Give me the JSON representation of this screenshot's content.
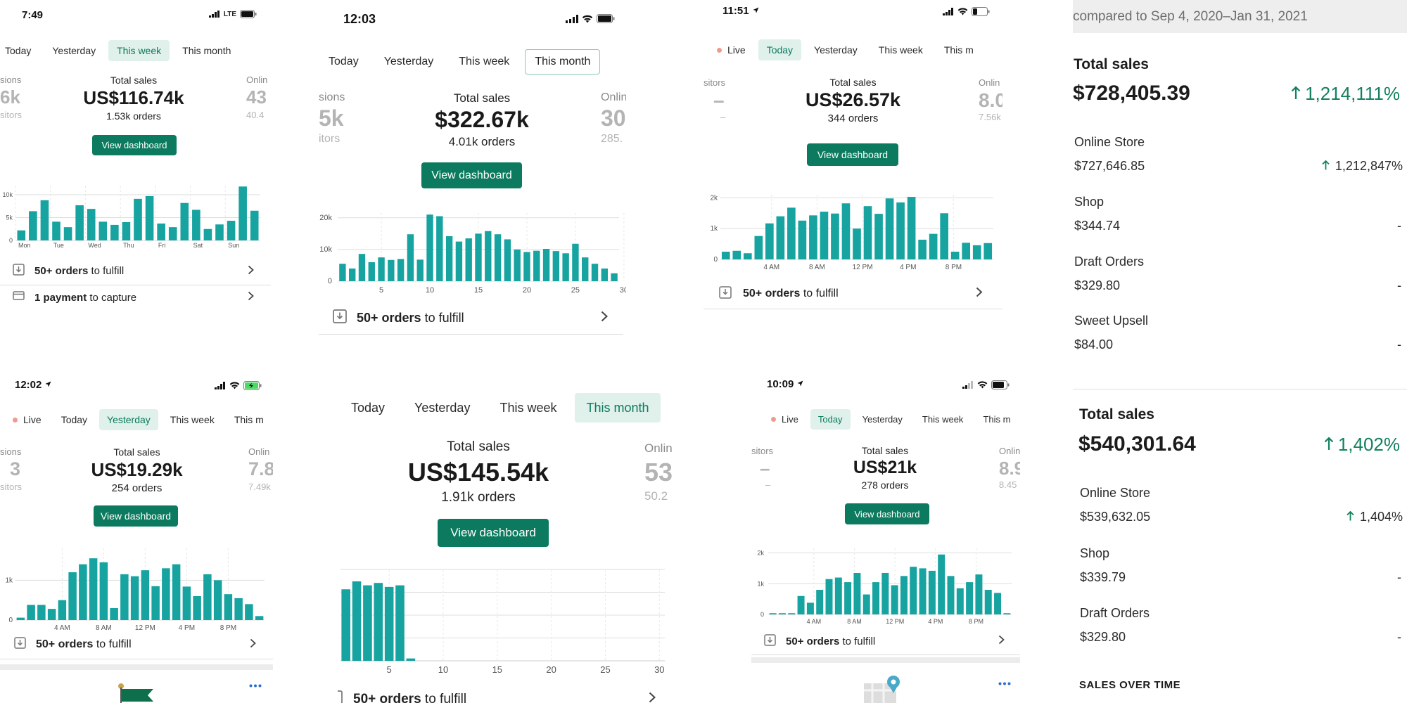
{
  "accent_color": "#0b7a5e",
  "bar_color": "#17a3a0",
  "panels": {
    "p1": {
      "time": "7:49",
      "network": "LTE",
      "tabs": [
        "Today",
        "Yesterday",
        "This week",
        "This month"
      ],
      "active_tab": "This week",
      "left": {
        "t": "sions",
        "v": "6k",
        "s": "sitors"
      },
      "center": {
        "t": "Total sales",
        "v": "US$116.74k",
        "s": "1.53k orders"
      },
      "right": {
        "t": "Onlin",
        "v": "43",
        "s": "40.4"
      },
      "button": "View dashboard",
      "rows": [
        {
          "bold": "50+ orders",
          "rest": " to fulfill"
        },
        {
          "bold": "1 payment",
          "rest": " to capture"
        }
      ],
      "chart_data": {
        "type": "bar",
        "ylabels": [
          "10k",
          "5k",
          "0"
        ],
        "ylim": [
          0,
          12000
        ],
        "xlabels": [
          "Mon",
          "Tue",
          "Wed",
          "Thu",
          "Fri",
          "Sat",
          "Sun"
        ],
        "values": [
          2200,
          6400,
          8800,
          4100,
          2900,
          7700,
          6900,
          4100,
          3400,
          4000,
          9100,
          9700,
          3700,
          2900,
          8200,
          6700,
          2500,
          3500,
          4300,
          11800,
          6500
        ]
      }
    },
    "p2": {
      "time": "12:03",
      "tabs": [
        "Today",
        "Yesterday",
        "This week",
        "This month"
      ],
      "active_tab": "This month",
      "left": {
        "t": "sions",
        "v": "5k",
        "s": "itors"
      },
      "center": {
        "t": "Total sales",
        "v": "$322.67k",
        "s": "4.01k orders"
      },
      "right": {
        "t": "Onlin",
        "v": "30",
        "s": "285."
      },
      "button": "View dashboard",
      "rows": [
        {
          "bold": "50+ orders",
          "rest": " to fulfill"
        }
      ],
      "chart_data": {
        "type": "bar",
        "ylabels": [
          "20k",
          "10k",
          "0"
        ],
        "ylim": [
          0,
          21500
        ],
        "xlabels": [
          "5",
          "10",
          "15",
          "20",
          "25",
          "30"
        ],
        "values": [
          5500,
          4000,
          8600,
          6000,
          7500,
          6700,
          7000,
          14800,
          6800,
          21000,
          20500,
          14200,
          12500,
          13500,
          15000,
          15800,
          14800,
          13200,
          10000,
          9200,
          9600,
          10200,
          9500,
          8800,
          11800,
          7500,
          5500,
          4000,
          2500
        ]
      }
    },
    "p3": {
      "time": "11:51",
      "tabs": [
        "Live",
        "Today",
        "Yesterday",
        "This week",
        "This m"
      ],
      "active_tab": "Today",
      "left": {
        "t": "sitors",
        "v": "–",
        "s": "–"
      },
      "center": {
        "t": "Total sales",
        "v": "US$26.57k",
        "s": "344 orders"
      },
      "right": {
        "t": "Onlin",
        "v": "8.0",
        "s": "7.56k"
      },
      "button": "View dashboard",
      "rows": [
        {
          "bold": "50+ orders",
          "rest": " to fulfill"
        }
      ],
      "chart_data": {
        "type": "bar",
        "ylabels": [
          "2k",
          "1k",
          "0"
        ],
        "ylim": [
          0,
          2100
        ],
        "xlabels": [
          "4 AM",
          "8 AM",
          "12 PM",
          "4 PM",
          "8 PM"
        ],
        "values": [
          250,
          280,
          200,
          760,
          1170,
          1400,
          1680,
          1260,
          1430,
          1550,
          1490,
          1820,
          1000,
          1730,
          1480,
          1980,
          1850,
          2030,
          640,
          830,
          1500,
          250,
          540,
          460,
          530
        ]
      }
    },
    "p4": {
      "time": "12:02",
      "tabs": [
        "Live",
        "Today",
        "Yesterday",
        "This week",
        "This m"
      ],
      "active_tab": "Yesterday",
      "left": {
        "t": "sions",
        "v": "3",
        "s": "sitors"
      },
      "center": {
        "t": "Total sales",
        "v": "US$19.29k",
        "s": "254 orders"
      },
      "right": {
        "t": "Onlin",
        "v": "7.8",
        "s": "7.49k"
      },
      "button": "View dashboard",
      "rows": [
        {
          "bold": "50+ orders",
          "rest": " to fulfill"
        }
      ],
      "chart_data": {
        "type": "bar",
        "ylabels": [
          "1k",
          "0"
        ],
        "ylim": [
          0,
          1800
        ],
        "xlabels": [
          "4 AM",
          "8 AM",
          "12 PM",
          "4 PM",
          "8 PM"
        ],
        "values": [
          60,
          380,
          380,
          280,
          500,
          1200,
          1400,
          1550,
          1450,
          300,
          1150,
          1100,
          1250,
          850,
          1300,
          1400,
          840,
          600,
          1150,
          1000,
          650,
          550,
          400,
          100
        ]
      }
    },
    "p5": {
      "tabs": [
        "Today",
        "Yesterday",
        "This week",
        "This month"
      ],
      "active_tab": "This month",
      "left": {
        "t": "",
        "v": "",
        "s": ""
      },
      "center": {
        "t": "Total sales",
        "v": "US$145.54k",
        "s": "1.91k orders"
      },
      "right": {
        "t": "Onlin",
        "v": "53",
        "s": "50.2"
      },
      "button": "View dashboard",
      "rows": [
        {
          "bold": "50+ orders",
          "rest": " to fulfill"
        }
      ],
      "chart_data": {
        "type": "bar",
        "ylabels": [],
        "ylim": [
          0,
          1.15
        ],
        "xlabels": [
          "5",
          "10",
          "15",
          "20",
          "25",
          "30"
        ],
        "values": [
          0.9,
          1.0,
          0.95,
          0.98,
          0.93,
          0.95,
          0.03,
          0,
          0,
          0,
          0,
          0,
          0,
          0,
          0,
          0,
          0,
          0,
          0,
          0,
          0,
          0,
          0,
          0,
          0,
          0,
          0,
          0,
          0,
          0
        ]
      }
    },
    "p6": {
      "time": "10:09",
      "tabs": [
        "Live",
        "Today",
        "Yesterday",
        "This week",
        "This m"
      ],
      "active_tab": "Today",
      "left": {
        "t": "sitors",
        "v": "–",
        "s": "–"
      },
      "center": {
        "t": "Total sales",
        "v": "US$21k",
        "s": "278 orders"
      },
      "right": {
        "t": "Onlin",
        "v": "8.9",
        "s": "8.45"
      },
      "button": "View dashboard",
      "rows": [
        {
          "bold": "50+ orders",
          "rest": " to fulfill"
        }
      ],
      "chart_data": {
        "type": "bar",
        "ylabels": [
          "2k",
          "1k",
          "0"
        ],
        "ylim": [
          0,
          2150
        ],
        "xlabels": [
          "4 AM",
          "8 AM",
          "12 PM",
          "4 PM",
          "8 PM"
        ],
        "values": [
          40,
          40,
          40,
          600,
          380,
          800,
          1150,
          1200,
          1050,
          1350,
          650,
          1050,
          1350,
          950,
          1250,
          1550,
          1500,
          1420,
          1950,
          1250,
          850,
          1050,
          1300,
          800,
          700,
          40
        ]
      }
    }
  },
  "right_panel": {
    "header": "compared to Sep 4, 2020–Jan 31, 2021",
    "sections": [
      {
        "title": "Total sales",
        "total": "$728,405.39",
        "pct": "1,214,111%",
        "items": [
          {
            "label": "Online Store",
            "amount": "$727,646.85",
            "change": "1,212,847%",
            "up": true
          },
          {
            "label": "Shop",
            "amount": "$344.74",
            "change": "-",
            "up": false
          },
          {
            "label": "Draft Orders",
            "amount": "$329.80",
            "change": "-",
            "up": false
          },
          {
            "label": "Sweet Upsell",
            "amount": "$84.00",
            "change": "-",
            "up": false
          }
        ]
      },
      {
        "title": "Total sales",
        "total": "$540,301.64",
        "pct": "1,402%",
        "items": [
          {
            "label": "Online Store",
            "amount": "$539,632.05",
            "change": "1,404%",
            "up": true
          },
          {
            "label": "Shop",
            "amount": "$339.79",
            "change": "-",
            "up": false
          },
          {
            "label": "Draft Orders",
            "amount": "$329.80",
            "change": "-",
            "up": false
          }
        ]
      }
    ],
    "footer": "SALES OVER TIME"
  }
}
